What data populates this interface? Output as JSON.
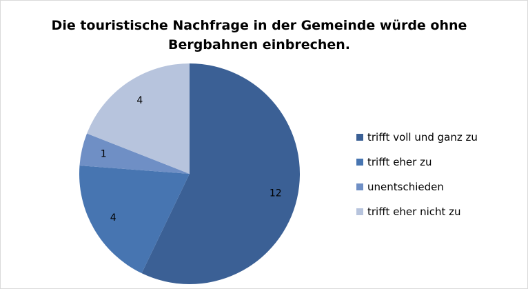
{
  "chart_data": {
    "type": "pie",
    "title": "Die touristische Nachfrage in der Gemeinde würde ohne Bergbahnen einbrechen.",
    "categories": [
      "trifft voll und ganz zu",
      "trifft eher zu",
      "unentschieden",
      "trifft eher nicht zu"
    ],
    "values": [
      12,
      4,
      1,
      4
    ],
    "colors": [
      "#3b6095",
      "#4775b1",
      "#6f8fc5",
      "#b7c4dd"
    ],
    "legend": "right"
  }
}
